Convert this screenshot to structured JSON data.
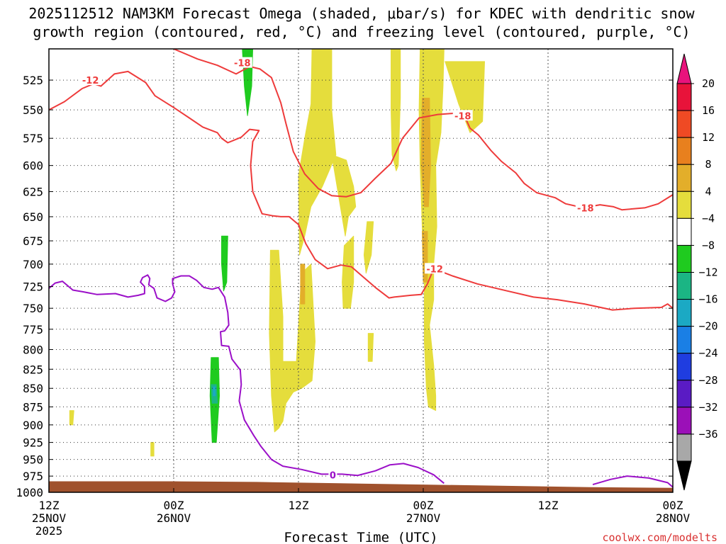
{
  "chart_data": {
    "type": "time-height",
    "title_line1": "2025112512 NAM3KM Forecast Omega (shaded, μbar/s) for KDEC with dendritic snow",
    "title_line2": "growth region (contoured, red, °C) and freezing level (contoured, purple, °C)",
    "xlabel": "Forecast Time (UTC)",
    "credit": "coolwx.com/modelts",
    "x_range_hours": [
      0,
      60
    ],
    "y_range_hpa": [
      500,
      1000
    ],
    "x_ticks": [
      {
        "h": 0,
        "l1": "12Z",
        "l2": "25NOV",
        "l3": "2025"
      },
      {
        "h": 12,
        "l1": "00Z",
        "l2": "26NOV",
        "l3": ""
      },
      {
        "h": 24,
        "l1": "12Z",
        "l2": "",
        "l3": ""
      },
      {
        "h": 36,
        "l1": "00Z",
        "l2": "27NOV",
        "l3": ""
      },
      {
        "h": 48,
        "l1": "12Z",
        "l2": "",
        "l3": ""
      },
      {
        "h": 60,
        "l1": "00Z",
        "l2": "28NOV",
        "l3": ""
      }
    ],
    "y_ticks": [
      525,
      550,
      575,
      600,
      625,
      650,
      675,
      700,
      725,
      750,
      775,
      800,
      825,
      850,
      875,
      900,
      925,
      950,
      975,
      1000
    ],
    "colorbar": {
      "labels": [
        "20",
        "16",
        "12",
        "8",
        "4",
        "−4",
        "−8",
        "−12",
        "−16",
        "−20",
        "−24",
        "−28",
        "−32",
        "−36"
      ],
      "colors": [
        "#e8133a",
        "#ef4a24",
        "#e8801e",
        "#e3ae2a",
        "#e5dd3c",
        "#ffffff",
        "#1fcb1f",
        "#1bb584",
        "#1ba9c4",
        "#1a7fe5",
        "#1f3de0",
        "#5a1bc4",
        "#9b10b8",
        "#a8a8a8"
      ],
      "top_color": "#e8137c",
      "bottom_color": "#000000"
    },
    "red_contour_labels": [
      "-12",
      "-18",
      "-18",
      "-18",
      "-12"
    ],
    "purple_contour_labels": [
      "0"
    ],
    "omega_regions": [
      {
        "color": "#e5dd3c",
        "pts": [
          [
            25.3,
            500
          ],
          [
            27.2,
            500
          ],
          [
            27.2,
            550
          ],
          [
            27.6,
            590
          ],
          [
            26.3,
            620
          ],
          [
            25.2,
            640
          ],
          [
            24.6,
            670
          ],
          [
            24.1,
            690
          ],
          [
            24,
            610
          ],
          [
            24.6,
            575
          ],
          [
            25.2,
            545
          ]
        ]
      },
      {
        "color": "#e5dd3c",
        "pts": [
          [
            27.2,
            590
          ],
          [
            28.6,
            595
          ],
          [
            29.3,
            620
          ],
          [
            29.5,
            640
          ],
          [
            28.8,
            650
          ],
          [
            28.5,
            670
          ]
        ]
      },
      {
        "color": "#e5dd3c",
        "pts": [
          [
            28.4,
            680
          ],
          [
            29.3,
            670
          ],
          [
            29.3,
            720
          ],
          [
            29,
            750
          ],
          [
            28.3,
            750
          ],
          [
            28.2,
            720
          ]
        ]
      },
      {
        "color": "#e5dd3c",
        "pts": [
          [
            30.6,
            655
          ],
          [
            31.2,
            655
          ],
          [
            31,
            690
          ],
          [
            30.5,
            710
          ],
          [
            30.3,
            690
          ]
        ]
      },
      {
        "color": "#e5dd3c",
        "pts": [
          [
            32.9,
            500
          ],
          [
            33.8,
            500
          ],
          [
            33.8,
            540
          ],
          [
            33.6,
            600
          ],
          [
            33.4,
            605
          ],
          [
            33,
            590
          ],
          [
            32.9,
            550
          ]
        ]
      },
      {
        "color": "#e5dd3c",
        "pts": [
          [
            35.7,
            500
          ],
          [
            38,
            500
          ],
          [
            37.9,
            530
          ],
          [
            37.7,
            570
          ],
          [
            37.2,
            600
          ],
          [
            37.3,
            660
          ],
          [
            37,
            700
          ],
          [
            37,
            740
          ],
          [
            36.6,
            770
          ],
          [
            37,
            820
          ],
          [
            37.2,
            860
          ],
          [
            37.2,
            880
          ],
          [
            36.5,
            875
          ],
          [
            36.3,
            850
          ],
          [
            36.1,
            790
          ],
          [
            36.1,
            720
          ],
          [
            35.9,
            660
          ],
          [
            35.7,
            600
          ],
          [
            35.6,
            550
          ]
        ]
      },
      {
        "color": "#e5dd3c",
        "pts": [
          [
            38.1,
            510
          ],
          [
            41.9,
            510
          ],
          [
            41.7,
            560
          ],
          [
            40.5,
            570
          ],
          [
            39.4,
            545
          ]
        ]
      },
      {
        "color": "#e5dd3c",
        "pts": [
          [
            21.3,
            685
          ],
          [
            22.1,
            685
          ],
          [
            22.5,
            760
          ],
          [
            22.5,
            815
          ],
          [
            23.8,
            815
          ],
          [
            24.1,
            750
          ],
          [
            24.3,
            710
          ],
          [
            25.2,
            700
          ],
          [
            25.6,
            790
          ],
          [
            25.3,
            840
          ],
          [
            24.3,
            850
          ],
          [
            23.5,
            855
          ],
          [
            22.8,
            870
          ],
          [
            22.5,
            895
          ],
          [
            22.1,
            905
          ],
          [
            21.7,
            910
          ],
          [
            21.4,
            860
          ],
          [
            21.2,
            780
          ]
        ]
      },
      {
        "color": "#e5dd3c",
        "pts": [
          [
            30.7,
            780
          ],
          [
            31.2,
            780
          ],
          [
            31.1,
            815
          ],
          [
            30.7,
            815
          ]
        ]
      },
      {
        "color": "#e5dd3c",
        "pts": [
          [
            2,
            880
          ],
          [
            2.4,
            880
          ],
          [
            2.3,
            900
          ],
          [
            2,
            900
          ]
        ]
      },
      {
        "color": "#e5dd3c",
        "pts": [
          [
            9.8,
            925
          ],
          [
            10.1,
            925
          ],
          [
            10.1,
            945
          ],
          [
            9.8,
            945
          ]
        ]
      },
      {
        "color": "#e3ae2a",
        "pts": [
          [
            35.9,
            540
          ],
          [
            36.6,
            540
          ],
          [
            36.7,
            600
          ],
          [
            36.5,
            640
          ],
          [
            36.1,
            640
          ],
          [
            35.8,
            600
          ]
        ]
      },
      {
        "color": "#e3ae2a",
        "pts": [
          [
            35.9,
            665
          ],
          [
            36.4,
            665
          ],
          [
            36.4,
            720
          ],
          [
            36,
            720
          ]
        ]
      },
      {
        "color": "#e3ae2a",
        "pts": [
          [
            24.2,
            700
          ],
          [
            24.6,
            700
          ],
          [
            24.6,
            745
          ],
          [
            24.2,
            745
          ]
        ]
      },
      {
        "color": "#1fcb1f",
        "pts": [
          [
            18.6,
            500
          ],
          [
            19.6,
            500
          ],
          [
            19.5,
            530
          ],
          [
            19.1,
            555
          ],
          [
            18.8,
            530
          ]
        ]
      },
      {
        "color": "#1fcb1f",
        "pts": [
          [
            16.6,
            670
          ],
          [
            17.2,
            670
          ],
          [
            17.1,
            720
          ],
          [
            16.8,
            730
          ],
          [
            16.6,
            700
          ]
        ]
      },
      {
        "color": "#1fcb1f",
        "pts": [
          [
            15.6,
            810
          ],
          [
            16.3,
            810
          ],
          [
            16.4,
            860
          ],
          [
            16.1,
            925
          ],
          [
            15.7,
            925
          ],
          [
            15.5,
            860
          ]
        ]
      },
      {
        "color": "#1bb584",
        "pts": [
          [
            15.6,
            845
          ],
          [
            16.1,
            845
          ],
          [
            16.2,
            870
          ],
          [
            15.7,
            870
          ]
        ]
      },
      {
        "color": "#1ba9c4",
        "pts": [
          [
            15.8,
            848
          ],
          [
            16,
            848
          ],
          [
            16,
            860
          ],
          [
            15.8,
            860
          ]
        ]
      }
    ],
    "terrain": {
      "color": "#a0522d",
      "top_edge": [
        [
          0,
          983
        ],
        [
          12,
          983
        ],
        [
          20,
          984
        ],
        [
          28,
          986
        ],
        [
          36,
          988
        ],
        [
          44,
          990
        ],
        [
          52,
          992
        ],
        [
          60,
          993
        ]
      ]
    },
    "red_contours": [
      [
        [
          0,
          550
        ],
        [
          1.5,
          543
        ],
        [
          3.2,
          532
        ],
        [
          4.3,
          528
        ],
        [
          5,
          530
        ],
        [
          6.3,
          520
        ],
        [
          7.6,
          518
        ],
        [
          9.3,
          527
        ],
        [
          10.2,
          538
        ],
        [
          12,
          548
        ],
        [
          13.5,
          557
        ],
        [
          14.8,
          565
        ],
        [
          16.2,
          570
        ],
        [
          16.6,
          575
        ],
        [
          17.2,
          579
        ],
        [
          18.5,
          574
        ],
        [
          19.3,
          567
        ],
        [
          20.2,
          568
        ],
        [
          19.6,
          578
        ],
        [
          19.4,
          600
        ],
        [
          19.6,
          625
        ],
        [
          20.5,
          647
        ],
        [
          21.5,
          649
        ],
        [
          22.3,
          650
        ],
        [
          23.1,
          650
        ],
        [
          24,
          658
        ],
        [
          24.7,
          678
        ],
        [
          25.6,
          695
        ],
        [
          26.8,
          705
        ],
        [
          28.1,
          701
        ],
        [
          29.1,
          703
        ],
        [
          30.4,
          716
        ],
        [
          31.5,
          727
        ],
        [
          32.7,
          738
        ],
        [
          33.2,
          737
        ],
        [
          34.8,
          735
        ],
        [
          35.8,
          734
        ],
        [
          36.4,
          722
        ],
        [
          37,
          705
        ]
      ],
      [
        [
          37,
          705
        ],
        [
          38.8,
          713
        ],
        [
          41.2,
          722
        ],
        [
          44.1,
          730
        ],
        [
          46.6,
          737
        ],
        [
          48.9,
          740
        ],
        [
          51.5,
          745
        ],
        [
          54.2,
          752
        ],
        [
          56.3,
          750
        ],
        [
          58.9,
          749
        ],
        [
          59.5,
          745
        ],
        [
          60,
          750
        ]
      ],
      [
        [
          12,
          500
        ],
        [
          14.3,
          508
        ],
        [
          16.2,
          513
        ],
        [
          18,
          520
        ],
        [
          19.3,
          514
        ],
        [
          20.3,
          516
        ],
        [
          21.4,
          523
        ],
        [
          22.3,
          544
        ],
        [
          22.8,
          562
        ],
        [
          23.5,
          587
        ],
        [
          24.6,
          608
        ],
        [
          25.9,
          622
        ],
        [
          27.2,
          629
        ],
        [
          28.6,
          630
        ],
        [
          30,
          626
        ],
        [
          31.4,
          612
        ],
        [
          32.9,
          598
        ],
        [
          34,
          575
        ],
        [
          35.6,
          557
        ],
        [
          37.4,
          554
        ],
        [
          38.9,
          553
        ],
        [
          39.9,
          554
        ],
        [
          40.5,
          566
        ],
        [
          41.3,
          572
        ],
        [
          42.5,
          586
        ],
        [
          43.5,
          596
        ],
        [
          44.9,
          607
        ],
        [
          45.7,
          617
        ],
        [
          46.9,
          626
        ],
        [
          48.7,
          631
        ],
        [
          49.7,
          637
        ],
        [
          51.4,
          641
        ],
        [
          53,
          638
        ],
        [
          54.3,
          640
        ],
        [
          55.1,
          643
        ],
        [
          57.3,
          641
        ],
        [
          58.6,
          637
        ],
        [
          60,
          628
        ]
      ]
    ],
    "purple_contour": [
      [
        0,
        727
      ],
      [
        0.6,
        721
      ],
      [
        1.3,
        719
      ],
      [
        2.3,
        729
      ],
      [
        3.3,
        731
      ],
      [
        4.6,
        734
      ],
      [
        6.4,
        733
      ],
      [
        7.6,
        737
      ],
      [
        8.6,
        735
      ],
      [
        9.2,
        733
      ],
      [
        9.2,
        725
      ],
      [
        8.8,
        720
      ],
      [
        9,
        715
      ],
      [
        9.5,
        712
      ],
      [
        9.7,
        716
      ],
      [
        9.6,
        723
      ],
      [
        10.1,
        727
      ],
      [
        10.4,
        738
      ],
      [
        11.2,
        742
      ],
      [
        11.8,
        738
      ],
      [
        12.1,
        731
      ],
      [
        11.9,
        722
      ],
      [
        11.9,
        716
      ],
      [
        12.7,
        713
      ],
      [
        13.5,
        713
      ],
      [
        14.2,
        718
      ],
      [
        14.9,
        726
      ],
      [
        15.7,
        728
      ],
      [
        16.3,
        726
      ],
      [
        16.9,
        737
      ],
      [
        17.2,
        755
      ],
      [
        17.3,
        770
      ],
      [
        16.9,
        777
      ],
      [
        16.5,
        778
      ],
      [
        16.6,
        795
      ],
      [
        17.3,
        796
      ],
      [
        17.6,
        812
      ],
      [
        18.4,
        826
      ],
      [
        18.5,
        845
      ],
      [
        18.3,
        867
      ],
      [
        18.8,
        893
      ],
      [
        19.7,
        915
      ],
      [
        20.4,
        931
      ],
      [
        21.4,
        950
      ],
      [
        22.5,
        960
      ],
      [
        24.3,
        965
      ],
      [
        26.2,
        972
      ],
      [
        28.2,
        972
      ],
      [
        29.7,
        974
      ],
      [
        31.4,
        967
      ],
      [
        32.8,
        958
      ],
      [
        34.1,
        956
      ],
      [
        35.5,
        962
      ],
      [
        37,
        973
      ],
      [
        38,
        986
      ]
    ],
    "purple_contour2": [
      [
        52.3,
        988
      ],
      [
        54,
        980
      ],
      [
        55.6,
        975
      ],
      [
        57.7,
        978
      ],
      [
        59.5,
        985
      ],
      [
        60,
        992
      ]
    ]
  }
}
